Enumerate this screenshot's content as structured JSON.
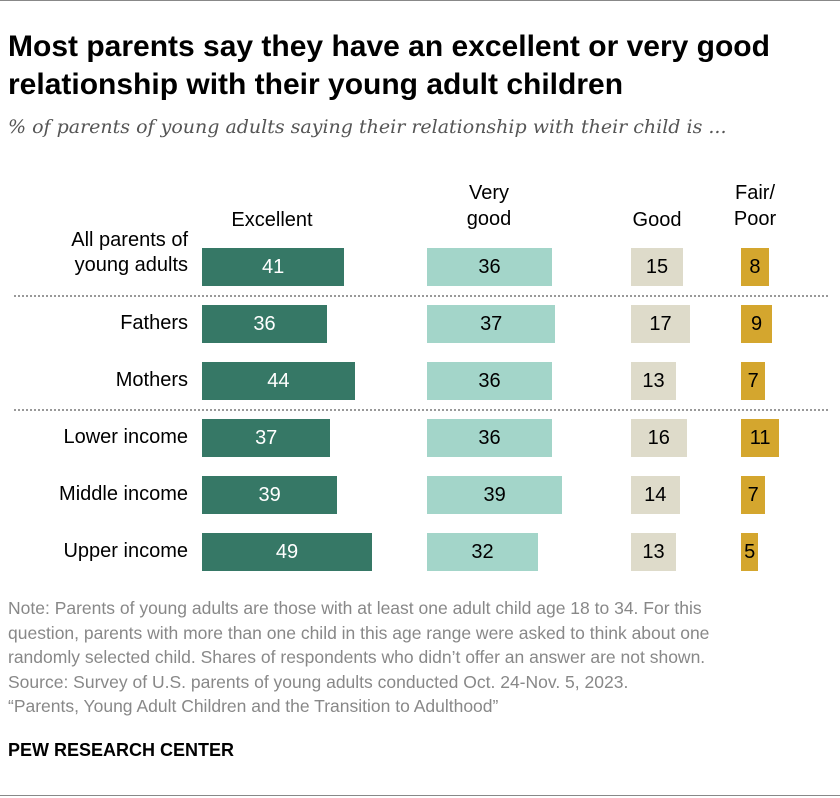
{
  "title": "Most parents say they have an excellent or very good relationship with their young adult children",
  "subtitle": "% of parents of young adults saying their relationship with their child is ...",
  "chart_data": {
    "type": "bar",
    "orientation": "horizontal",
    "categories": [
      "All parents of young adults",
      "Fathers",
      "Mothers",
      "Lower income",
      "Middle income",
      "Upper income"
    ],
    "series": [
      {
        "name": "Excellent",
        "values": [
          41,
          36,
          44,
          37,
          39,
          49
        ],
        "color": "#367866",
        "text_color": "#ffffff"
      },
      {
        "name": "Very good",
        "values": [
          36,
          37,
          36,
          36,
          39,
          32
        ],
        "color": "#a3d5c9",
        "text_color": "#000000"
      },
      {
        "name": "Good",
        "values": [
          15,
          17,
          13,
          16,
          14,
          13
        ],
        "color": "#dedbca",
        "text_color": "#000000"
      },
      {
        "name": "Fair/ Poor",
        "values": [
          8,
          9,
          7,
          11,
          7,
          5
        ],
        "color": "#d4a62e",
        "text_color": "#000000"
      }
    ],
    "group_separators_after": [
      0,
      2
    ]
  },
  "note": [
    "Note: Parents of young adults are those with at least one adult child age 18 to 34. For this",
    "question, parents with more than one child in this age range were asked to think about one",
    "randomly selected child. Shares of respondents who didn’t offer an answer are not shown.",
    "Source: Survey of U.S. parents of young adults conducted Oct. 24-Nov. 5, 2023.",
    "“Parents, Young Adult Children and the Transition to Adulthood”"
  ],
  "brand": "PEW RESEARCH CENTER"
}
